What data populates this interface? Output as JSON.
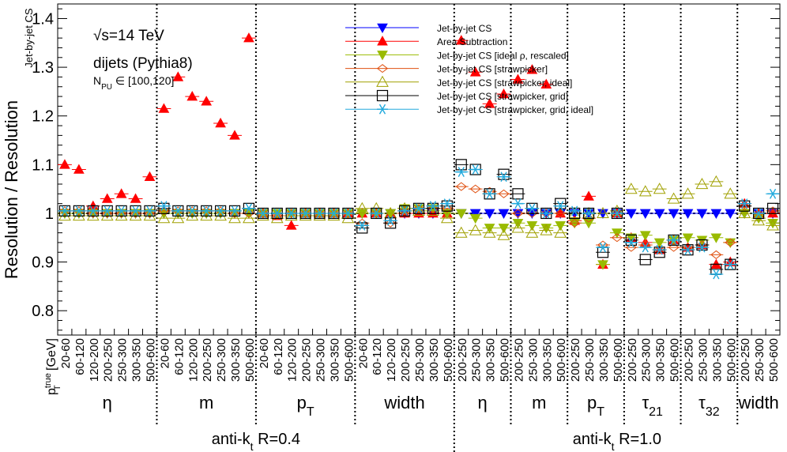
{
  "chart_data": {
    "type": "scatter",
    "ylabel": "Resolution / Resolution",
    "ylabel_sub": "Jet-by-jet CS",
    "ylim": [
      0.75,
      1.43
    ],
    "yticks": [
      0.8,
      0.9,
      1,
      1.1,
      1.2,
      1.3,
      1.4
    ],
    "ytick_labels": [
      "0.8",
      "0.9",
      "1",
      "1.1",
      "1.2",
      "1.3",
      "1.4"
    ],
    "annotations": {
      "sqrt_s": "√s=14 TeV",
      "process": "dijets (Pythia8)",
      "npu": "N_PU ∈ [100,120]"
    },
    "xaxis_title": "p_T^true [GeV]",
    "groups": [
      {
        "label": "η",
        "bins": [
          "20-60",
          "60-120",
          "120-200",
          "200-250",
          "250-300",
          "300-350",
          "500-600"
        ]
      },
      {
        "label": "m",
        "bins": [
          "20-60",
          "60-120",
          "120-200",
          "200-250",
          "250-300",
          "300-350",
          "500-600"
        ]
      },
      {
        "label": "p_T",
        "bins": [
          "20-60",
          "60-120",
          "120-200",
          "200-250",
          "250-300",
          "300-350",
          "500-600"
        ]
      },
      {
        "label": "width",
        "bins": [
          "20-60",
          "60-120",
          "120-200",
          "200-250",
          "250-300",
          "300-350",
          "500-600"
        ]
      },
      {
        "label": "η",
        "bins": [
          "200-250",
          "250-300",
          "300-350",
          "500-600"
        ]
      },
      {
        "label": "m",
        "bins": [
          "200-250",
          "250-300",
          "300-350",
          "500-600"
        ]
      },
      {
        "label": "p_T",
        "bins": [
          "200-250",
          "250-300",
          "300-350",
          "500-600"
        ]
      },
      {
        "label": "τ_21",
        "bins": [
          "200-250",
          "250-300",
          "300-350",
          "500-600"
        ]
      },
      {
        "label": "τ_32",
        "bins": [
          "200-250",
          "250-300",
          "300-350",
          "500-600"
        ]
      },
      {
        "label": "width",
        "bins": [
          "200-250",
          "250-300",
          "500-600"
        ]
      }
    ],
    "jet_labels": [
      "anti-k_t R=0.4",
      "anti-k_t R=1.0"
    ],
    "legend": [
      {
        "name": "Jet-by-jet CS",
        "color": "#0000ff",
        "marker": "tri-down-filled"
      },
      {
        "name": "Area Subtraction",
        "color": "#ff0000",
        "marker": "tri-up-filled"
      },
      {
        "name": "Jet-by-jet CS [ideal ρ, rescaled]",
        "color": "#99bb00",
        "marker": "tri-down-filled"
      },
      {
        "name": "Jet-by-jet CS [strawpicker]",
        "color": "#e05010",
        "marker": "diamond-open"
      },
      {
        "name": "Jet-by-jet CS [strawpicker, ideal]",
        "color": "#a0a000",
        "marker": "tri-up-open"
      },
      {
        "name": "Jet-by-jet CS [strawpicker, grid]",
        "color": "#000000",
        "marker": "square-open"
      },
      {
        "name": "Jet-by-jet CS [strawpicker, grid, ideal]",
        "color": "#22aadd",
        "marker": "star"
      }
    ],
    "series": [
      {
        "name": "Jet-by-jet CS",
        "values": [
          1,
          1,
          1,
          1,
          1,
          1,
          1,
          1,
          1,
          1,
          1,
          1,
          1,
          1,
          1,
          1,
          1,
          1,
          1,
          1,
          1,
          1,
          1,
          1,
          1,
          1,
          1,
          1,
          1,
          1,
          1,
          1,
          1,
          1,
          1,
          1,
          1,
          1,
          1,
          1,
          1,
          1,
          1,
          1,
          1,
          1,
          1,
          1,
          1,
          1,
          1
        ]
      },
      {
        "name": "Area Subtraction",
        "values": [
          1.1,
          1.09,
          1.015,
          1.03,
          1.04,
          1.03,
          1.075,
          1.215,
          1.28,
          1.24,
          1.23,
          1.185,
          1.16,
          1.36,
          1.0,
          0.995,
          0.975,
          1.0,
          1.0,
          1.0,
          1.0,
          1.0,
          1.0,
          1.0,
          1.0,
          1.0,
          1.0,
          1.0,
          1.355,
          1.29,
          1.225,
          1.245,
          1.275,
          1.295,
          1.265,
          1.0,
          0.985,
          1.035,
          0.895,
          1.0,
          0.95,
          0.94,
          0.925,
          0.945,
          0.93,
          0.935,
          0.895,
          0.9,
          1.02,
          1.0,
          1.0
        ]
      },
      {
        "name": "Jet-by-jet CS [ideal ρ, rescaled]",
        "values": [
          1.0,
          1.0,
          1.0,
          1.0,
          1.0,
          1.0,
          1.0,
          1.0,
          1.0,
          1.0,
          1.0,
          1.0,
          1.0,
          1.0,
          1.0,
          1.0,
          1.0,
          1.0,
          1.0,
          1.0,
          1.0,
          1.0,
          1.0,
          1.0,
          1.01,
          1.01,
          1.01,
          1.0,
          1.0,
          0.99,
          0.97,
          0.97,
          0.98,
          0.975,
          0.97,
          0.975,
          0.98,
          0.98,
          0.895,
          0.96,
          0.95,
          0.955,
          0.94,
          0.945,
          0.95,
          0.945,
          0.95,
          0.94,
          1.0,
          0.99,
          0.98
        ]
      },
      {
        "name": "Jet-by-jet CS [strawpicker]",
        "values": [
          1.005,
          1.005,
          1.0,
          1.0,
          1.0,
          1.0,
          1.0,
          1.005,
          1.005,
          1.005,
          1.005,
          1.005,
          1.0,
          1.0,
          1.0,
          0.995,
          1.0,
          1.0,
          1.0,
          1.0,
          1.0,
          0.98,
          1.0,
          0.98,
          1.005,
          1.01,
          1.01,
          1.01,
          1.055,
          1.05,
          1.045,
          1.04,
          1.0,
          1.0,
          1.0,
          1.0,
          0.98,
          0.99,
          0.935,
          0.95,
          0.93,
          0.935,
          0.925,
          0.93,
          0.93,
          0.935,
          0.915,
          0.94,
          1.015,
          1.0,
          1.005
        ]
      },
      {
        "name": "Jet-by-jet CS [strawpicker, ideal]",
        "values": [
          0.995,
          0.995,
          0.995,
          0.995,
          0.995,
          0.995,
          0.995,
          0.99,
          0.99,
          0.995,
          0.995,
          0.995,
          0.99,
          0.99,
          0.995,
          0.99,
          0.995,
          0.995,
          0.995,
          0.995,
          0.99,
          1.01,
          1.01,
          1.0,
          1.01,
          1.005,
          1.005,
          0.99,
          0.96,
          0.965,
          0.96,
          0.955,
          0.97,
          0.96,
          0.965,
          0.96,
          1.0,
          1.0,
          1.0,
          1.005,
          1.05,
          1.045,
          1.05,
          1.03,
          1.04,
          1.06,
          1.065,
          1.04,
          1.0,
          0.985,
          0.975
        ]
      },
      {
        "name": "Jet-by-jet CS [strawpicker, grid]",
        "values": [
          1.005,
          1.005,
          1.005,
          1.005,
          1.005,
          1.005,
          1.005,
          1.01,
          1.005,
          1.005,
          1.005,
          1.005,
          1.005,
          1.01,
          1.0,
          1.0,
          1.0,
          1.0,
          1.0,
          1.0,
          1.0,
          0.97,
          1.0,
          0.98,
          1.005,
          1.01,
          1.01,
          1.015,
          1.1,
          1.09,
          1.04,
          1.08,
          1.04,
          1.01,
          1.0,
          1.02,
          1.0,
          1.0,
          0.92,
          1.0,
          0.945,
          0.905,
          0.92,
          0.945,
          0.925,
          0.935,
          0.885,
          0.895,
          1.015,
          1.0,
          1.01
        ]
      },
      {
        "name": "Jet-by-jet CS [strawpicker, grid, ideal]",
        "values": [
          1.005,
          1.005,
          1.005,
          1.005,
          1.005,
          1.005,
          1.005,
          1.015,
          1.005,
          1.005,
          1.005,
          1.005,
          1.005,
          1.01,
          1.0,
          1.0,
          1.0,
          1.0,
          1.0,
          1.0,
          1.0,
          0.975,
          1.0,
          0.985,
          1.005,
          1.01,
          1.015,
          1.02,
          1.085,
          1.09,
          1.04,
          1.075,
          1.02,
          1.01,
          1.0,
          1.015,
          1.005,
          1.0,
          0.93,
          1.0,
          0.94,
          0.93,
          0.925,
          0.945,
          0.925,
          0.93,
          0.875,
          0.895,
          1.02,
          1.0,
          1.04
        ]
      }
    ]
  }
}
